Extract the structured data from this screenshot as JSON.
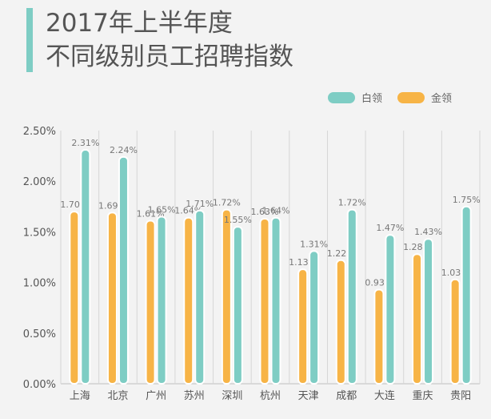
{
  "title": {
    "line1": "2017年上半年度",
    "line2": "不同级别员工招聘指数"
  },
  "colors": {
    "accent": "#7ecdc4",
    "white_collar": "#7ecdc4",
    "gold_collar": "#f7b446",
    "background": "#f3f3f3",
    "grid": "#d6d6d6"
  },
  "chart_data": {
    "type": "bar",
    "categories": [
      "上海",
      "北京",
      "广州",
      "苏州",
      "深圳",
      "杭州",
      "天津",
      "成都",
      "大连",
      "重庆",
      "贵阳"
    ],
    "series": [
      {
        "name": "金领",
        "values": [
          1.7,
          1.69,
          1.61,
          1.64,
          1.72,
          1.63,
          1.13,
          1.22,
          0.93,
          1.28,
          1.03
        ],
        "labels": [
          "1.70%",
          "1.69%",
          "1.61%",
          "1.64%",
          "1.72%",
          "1.63%",
          "1.13%",
          "1.22%",
          "0.93%",
          "1.28%",
          "1.03%"
        ]
      },
      {
        "name": "白领",
        "values": [
          2.31,
          2.24,
          1.65,
          1.71,
          1.55,
          1.64,
          1.31,
          1.72,
          1.47,
          1.43,
          1.75
        ],
        "labels": [
          "2.31%",
          "2.24%",
          "1.65%",
          "1.71%",
          "1.55%",
          "1.64%",
          "1.31%",
          "1.72%",
          "1.47%",
          "1.43%",
          "1.75%"
        ]
      }
    ],
    "yticks": [
      "0.00%",
      "0.50%",
      "1.00%",
      "1.50%",
      "2.00%",
      "2.50%"
    ],
    "ylim": [
      0,
      2.5
    ],
    "unit": "%",
    "grid": true,
    "legend_position": "top-right"
  }
}
